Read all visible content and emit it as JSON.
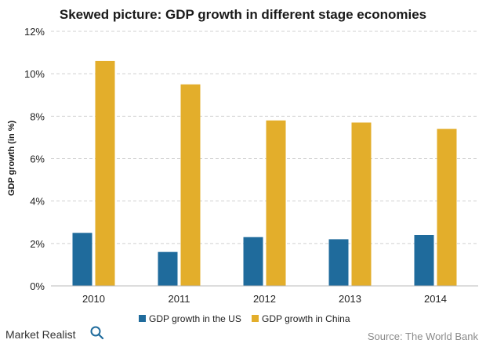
{
  "chart_data": {
    "type": "bar",
    "title": "Skewed picture: GDP growth in different stage economies",
    "xlabel": "",
    "ylabel": "GDP growth (in %)",
    "categories": [
      "2010",
      "2011",
      "2012",
      "2013",
      "2014"
    ],
    "series": [
      {
        "name": "GDP growth in the US",
        "values": [
          2.5,
          1.6,
          2.3,
          2.2,
          2.4
        ]
      },
      {
        "name": "GDP growth in China",
        "values": [
          10.6,
          9.5,
          7.8,
          7.7,
          7.4
        ]
      }
    ],
    "ylim": [
      0,
      12
    ],
    "yticks": [
      0,
      2,
      4,
      6,
      8,
      10,
      12
    ],
    "ytick_labels": [
      "0%",
      "2%",
      "4%",
      "6%",
      "8%",
      "10%",
      "12%"
    ],
    "grid": true,
    "legend_position": "bottom"
  },
  "colors": {
    "us": "#1f6b9c",
    "china": "#e3ae2b",
    "grid": "#d0d0d0",
    "axis": "#bbbbbb"
  },
  "footer": {
    "brand": "Market Realist",
    "source": "Source: The World Bank"
  },
  "icons": {
    "brand_logo": "magnifier-q-icon"
  }
}
